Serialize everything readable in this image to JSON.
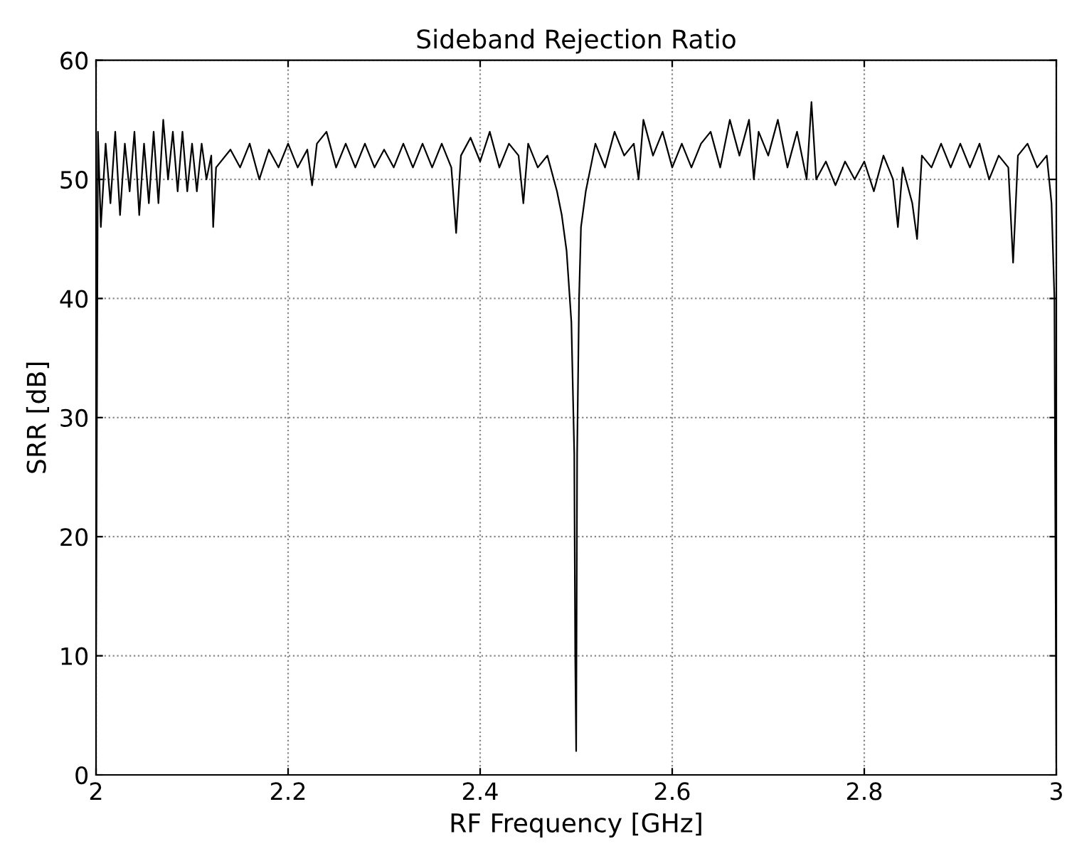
{
  "chart_data": {
    "type": "line",
    "title": "Sideband Rejection Ratio",
    "xlabel": "RF Frequency [GHz]",
    "ylabel": "SRR [dB]",
    "xlim": [
      2,
      3
    ],
    "xticks": [
      2,
      2.2,
      2.4,
      2.6,
      2.8,
      3
    ],
    "ylim": [
      0,
      60
    ],
    "yticks": [
      0,
      10,
      20,
      30,
      40,
      50,
      60
    ],
    "grid": true,
    "line_style": "solid",
    "marker": "none",
    "series": [
      {
        "color": "#000000",
        "x": [
          2.0,
          2.002,
          2.005,
          2.01,
          2.015,
          2.02,
          2.025,
          2.03,
          2.035,
          2.04,
          2.045,
          2.05,
          2.055,
          2.06,
          2.065,
          2.07,
          2.075,
          2.08,
          2.085,
          2.09,
          2.095,
          2.1,
          2.105,
          2.11,
          2.115,
          2.12,
          2.122,
          2.125,
          2.14,
          2.15,
          2.16,
          2.17,
          2.18,
          2.19,
          2.2,
          2.21,
          2.22,
          2.225,
          2.23,
          2.24,
          2.25,
          2.26,
          2.27,
          2.28,
          2.29,
          2.3,
          2.31,
          2.32,
          2.33,
          2.34,
          2.35,
          2.36,
          2.37,
          2.375,
          2.38,
          2.39,
          2.4,
          2.41,
          2.42,
          2.43,
          2.44,
          2.445,
          2.45,
          2.46,
          2.47,
          2.48,
          2.485,
          2.49,
          2.495,
          2.498,
          2.499,
          2.5,
          2.501,
          2.503,
          2.505,
          2.51,
          2.515,
          2.52,
          2.53,
          2.54,
          2.55,
          2.56,
          2.565,
          2.57,
          2.58,
          2.59,
          2.6,
          2.61,
          2.62,
          2.63,
          2.64,
          2.65,
          2.66,
          2.67,
          2.68,
          2.685,
          2.69,
          2.7,
          2.71,
          2.72,
          2.73,
          2.74,
          2.745,
          2.75,
          2.76,
          2.77,
          2.78,
          2.79,
          2.8,
          2.81,
          2.82,
          2.83,
          2.835,
          2.84,
          2.85,
          2.855,
          2.86,
          2.87,
          2.88,
          2.89,
          2.9,
          2.91,
          2.92,
          2.93,
          2.94,
          2.95,
          2.955,
          2.96,
          2.97,
          2.98,
          2.99,
          2.995,
          2.998,
          3.0
        ],
        "values": [
          10,
          54,
          46,
          53,
          48,
          54,
          47,
          53,
          49,
          54,
          47,
          53,
          48,
          54,
          48,
          55,
          50,
          54,
          49,
          54,
          49,
          53,
          49,
          53,
          50,
          52,
          46,
          51,
          52.5,
          51,
          53,
          50,
          52.5,
          51,
          53,
          51,
          52.5,
          49.5,
          53,
          54,
          51,
          53,
          51,
          53,
          51,
          52.5,
          51,
          53,
          51,
          53,
          51,
          53,
          51,
          45.5,
          52,
          53.5,
          51.5,
          54,
          51,
          53,
          52,
          48,
          53,
          51,
          52,
          49,
          47,
          44,
          38,
          27,
          10,
          2,
          27,
          40,
          46,
          49,
          51,
          53,
          51,
          54,
          52,
          53,
          50,
          55,
          52,
          54,
          51,
          53,
          51,
          53,
          54,
          51,
          55,
          52,
          55,
          50,
          54,
          52,
          55,
          51,
          54,
          50,
          56.5,
          50,
          51.5,
          49.5,
          51.5,
          50,
          51.5,
          49,
          52,
          50,
          46,
          51,
          48,
          45,
          52,
          51,
          53,
          51,
          53,
          51,
          53,
          50,
          52,
          51,
          43,
          52,
          53,
          51,
          52,
          48,
          40,
          1
        ]
      }
    ]
  }
}
